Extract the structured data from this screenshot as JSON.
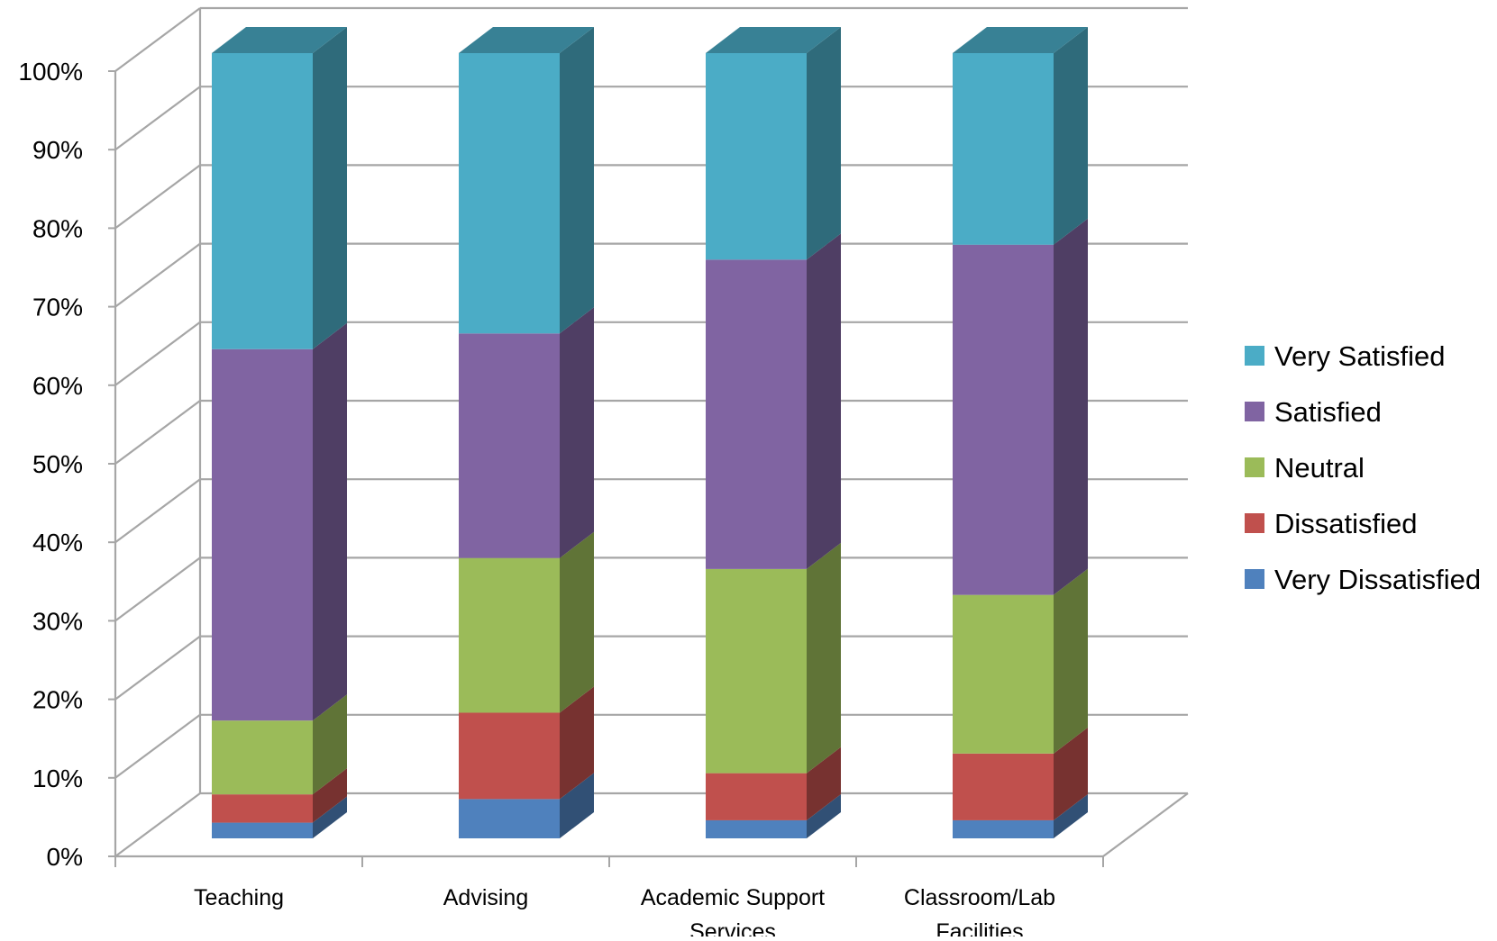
{
  "chart_data": {
    "type": "bar",
    "stacked": true,
    "percent_stacked": true,
    "style": "3d-column",
    "title": "",
    "xlabel": "",
    "ylabel": "",
    "ylim": [
      0,
      100
    ],
    "y_ticks": [
      "0%",
      "10%",
      "20%",
      "30%",
      "40%",
      "50%",
      "60%",
      "70%",
      "80%",
      "90%",
      "100%"
    ],
    "categories": [
      [
        "Teaching"
      ],
      [
        "Advising"
      ],
      [
        "Academic Support",
        "Services"
      ],
      [
        "Classroom/Lab",
        "Facilities"
      ]
    ],
    "series": [
      {
        "name": "Very Dissatisfied",
        "color": "#4f81bd",
        "values": [
          2,
          5,
          2.3,
          2.3
        ]
      },
      {
        "name": "Dissatisfied",
        "color": "#c0504d",
        "values": [
          3.6,
          11,
          6,
          8.5
        ]
      },
      {
        "name": "Neutral",
        "color": "#9bbb59",
        "values": [
          9.4,
          19.7,
          26,
          20.2
        ]
      },
      {
        "name": "Satisfied",
        "color": "#8064a2",
        "values": [
          47.3,
          28.6,
          39.4,
          44.6
        ]
      },
      {
        "name": "Very Satisfied",
        "color": "#4bacc6",
        "values": [
          37.7,
          35.7,
          26.3,
          24.4
        ]
      }
    ],
    "legend": {
      "position": "right",
      "order": "reverse"
    },
    "grid": true,
    "axis_color": "#a6a6a6"
  }
}
